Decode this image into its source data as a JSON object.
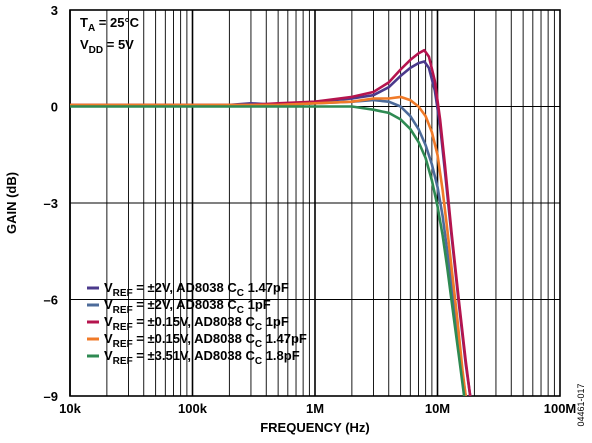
{
  "chart_data": {
    "type": "line",
    "title": "",
    "xlabel": "FREQUENCY (Hz)",
    "ylabel": "GAIN (dB)",
    "xscale": "log",
    "xlim": [
      10000,
      100000000
    ],
    "ylim": [
      -9,
      3
    ],
    "grid": true,
    "x_ticks": [
      {
        "value": 10000,
        "label": "10k"
      },
      {
        "value": 100000,
        "label": "100k"
      },
      {
        "value": 1000000,
        "label": "1M"
      },
      {
        "value": 10000000,
        "label": "10M"
      },
      {
        "value": 100000000,
        "label": "100M"
      }
    ],
    "y_ticks": [
      {
        "value": 3,
        "label": "3"
      },
      {
        "value": 0,
        "label": "0"
      },
      {
        "value": -3,
        "label": "–3"
      },
      {
        "value": -6,
        "label": "–6"
      },
      {
        "value": -9,
        "label": "–9"
      }
    ],
    "conditions": [
      {
        "main": "T",
        "sub": "A",
        "rest": " = 25°C"
      },
      {
        "main": "V",
        "sub": "DD",
        "rest": " = 5V"
      }
    ],
    "legend_position": "bottom-left",
    "series": [
      {
        "name": "V_REF = ±2V, AD8038 C_C 1.47pF",
        "legend": {
          "main": "V",
          "sub1": "REF",
          "mid": " = ±2V, AD8038 C",
          "sub2": "C",
          "tail": " 1.47pF"
        },
        "color": "#4b3a8c",
        "points": [
          [
            10000,
            0.05
          ],
          [
            100000,
            0.05
          ],
          [
            200000,
            0.05
          ],
          [
            300000,
            0.1
          ],
          [
            500000,
            0.05
          ],
          [
            1000000,
            0.15
          ],
          [
            2000000,
            0.25
          ],
          [
            3000000,
            0.35
          ],
          [
            4000000,
            0.6
          ],
          [
            5000000,
            0.95
          ],
          [
            6000000,
            1.2
          ],
          [
            7000000,
            1.35
          ],
          [
            7800000,
            1.4
          ],
          [
            8500000,
            1.2
          ],
          [
            9500000,
            0.5
          ],
          [
            10500000,
            -0.6
          ],
          [
            11500000,
            -2.0
          ],
          [
            13000000,
            -4.0
          ],
          [
            15000000,
            -6.2
          ],
          [
            17000000,
            -8.0
          ],
          [
            18500000,
            -9.0
          ]
        ]
      },
      {
        "name": "V_REF = ±2V, AD8038 C_C 1pF",
        "legend": {
          "main": "V",
          "sub1": "REF",
          "mid": " = ±2V, AD8038 C",
          "sub2": "C",
          "tail": " 1pF"
        },
        "color": "#4d6b9a",
        "points": [
          [
            10000,
            0.05
          ],
          [
            100000,
            0.05
          ],
          [
            200000,
            0.05
          ],
          [
            300000,
            0.05
          ],
          [
            500000,
            0.05
          ],
          [
            1000000,
            0.1
          ],
          [
            2000000,
            0.15
          ],
          [
            3000000,
            0.2
          ],
          [
            4000000,
            0.15
          ],
          [
            5000000,
            0.0
          ],
          [
            6000000,
            -0.3
          ],
          [
            7000000,
            -0.7
          ],
          [
            8000000,
            -1.2
          ],
          [
            9000000,
            -1.8
          ],
          [
            10000000,
            -2.5
          ],
          [
            11000000,
            -3.4
          ],
          [
            12500000,
            -5.0
          ],
          [
            14000000,
            -6.5
          ],
          [
            16000000,
            -8.3
          ],
          [
            17000000,
            -9.0
          ]
        ]
      },
      {
        "name": "V_REF = ±0.15V, AD8038 C_C 1pF",
        "legend": {
          "main": "V",
          "sub1": "REF",
          "mid": " = ±0.15V, AD8038 C",
          "sub2": "C",
          "tail": " 1pF"
        },
        "color": "#b5144e",
        "points": [
          [
            10000,
            0.05
          ],
          [
            100000,
            0.05
          ],
          [
            200000,
            0.05
          ],
          [
            300000,
            0.05
          ],
          [
            500000,
            0.1
          ],
          [
            1000000,
            0.15
          ],
          [
            2000000,
            0.3
          ],
          [
            3000000,
            0.45
          ],
          [
            4000000,
            0.75
          ],
          [
            5000000,
            1.15
          ],
          [
            6000000,
            1.45
          ],
          [
            7000000,
            1.65
          ],
          [
            7800000,
            1.75
          ],
          [
            8500000,
            1.55
          ],
          [
            9500000,
            0.8
          ],
          [
            10500000,
            -0.4
          ],
          [
            11500000,
            -1.8
          ],
          [
            13000000,
            -3.9
          ],
          [
            15000000,
            -6.1
          ],
          [
            17000000,
            -7.9
          ],
          [
            18500000,
            -9.0
          ]
        ]
      },
      {
        "name": "V_REF = ±0.15V, AD8038 C_C 1.47pF",
        "legend": {
          "main": "V",
          "sub1": "REF",
          "mid": " = ±0.15V, AD8038 C",
          "sub2": "C",
          "tail": " 1.47pF"
        },
        "color": "#f07a28",
        "points": [
          [
            10000,
            0.05
          ],
          [
            100000,
            0.05
          ],
          [
            200000,
            0.05
          ],
          [
            300000,
            0.05
          ],
          [
            500000,
            0.05
          ],
          [
            1000000,
            0.1
          ],
          [
            2000000,
            0.15
          ],
          [
            3000000,
            0.25
          ],
          [
            4000000,
            0.25
          ],
          [
            5000000,
            0.3
          ],
          [
            6000000,
            0.2
          ],
          [
            7000000,
            0.0
          ],
          [
            8000000,
            -0.3
          ],
          [
            9000000,
            -0.8
          ],
          [
            10000000,
            -1.5
          ],
          [
            11000000,
            -2.6
          ],
          [
            12000000,
            -3.8
          ],
          [
            13000000,
            -5.0
          ],
          [
            14500000,
            -6.6
          ],
          [
            16000000,
            -8.2
          ],
          [
            17000000,
            -9.0
          ]
        ]
      },
      {
        "name": "V_REF = ±3.51V, AD8038 C_C 1.8pF",
        "legend": {
          "main": "V",
          "sub1": "REF",
          "mid": " = ±3.51V, AD8038 C",
          "sub2": "C",
          "tail": " 1.8pF"
        },
        "color": "#2e8a52",
        "points": [
          [
            10000,
            0.0
          ],
          [
            100000,
            0.0
          ],
          [
            200000,
            0.0
          ],
          [
            300000,
            0.0
          ],
          [
            500000,
            0.0
          ],
          [
            1000000,
            0.0
          ],
          [
            2000000,
            0.0
          ],
          [
            3000000,
            -0.1
          ],
          [
            4000000,
            -0.2
          ],
          [
            5000000,
            -0.4
          ],
          [
            6000000,
            -0.7
          ],
          [
            7000000,
            -1.1
          ],
          [
            8000000,
            -1.6
          ],
          [
            9000000,
            -2.3
          ],
          [
            10000000,
            -3.1
          ],
          [
            11000000,
            -4.0
          ],
          [
            12000000,
            -5.0
          ],
          [
            13500000,
            -6.5
          ],
          [
            15000000,
            -7.8
          ],
          [
            16500000,
            -9.0
          ]
        ]
      }
    ]
  },
  "figure_id": "04461-017"
}
